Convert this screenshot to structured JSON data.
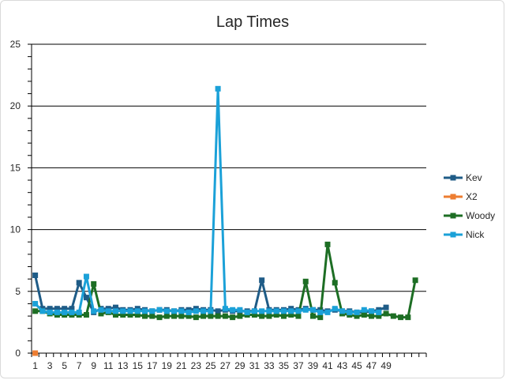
{
  "chart_data": {
    "type": "line",
    "title": "Lap Times",
    "xlabel": "",
    "ylabel": "",
    "ylim": [
      0,
      25
    ],
    "ytick_values": [
      0,
      5,
      10,
      15,
      20,
      25
    ],
    "xtick_labels": [
      "1",
      "3",
      "5",
      "7",
      "9",
      "11",
      "13",
      "15",
      "17",
      "19",
      "21",
      "23",
      "25",
      "27",
      "29",
      "31",
      "33",
      "35",
      "37",
      "39",
      "41",
      "43",
      "45",
      "47",
      "49"
    ],
    "x_count": 54,
    "grid": "horizontal",
    "legend_position": "right",
    "series": [
      {
        "name": "Kev",
        "color": "#1f5c87",
        "values": [
          6.3,
          3.6,
          3.6,
          3.6,
          3.6,
          3.6,
          5.7,
          4.5,
          3.3,
          3.6,
          3.6,
          3.7,
          3.5,
          3.5,
          3.6,
          3.5,
          3.4,
          3.5,
          3.5,
          3.4,
          3.5,
          3.5,
          3.6,
          3.5,
          3.5,
          3.4,
          3.5,
          3.4,
          3.4,
          3.4,
          3.4,
          5.9,
          3.5,
          3.5,
          3.5,
          3.6,
          3.5,
          3.6,
          3.5,
          3.5,
          3.4,
          3.5,
          3.4,
          3.4,
          3.3,
          3.3,
          3.4,
          3.5,
          3.7
        ]
      },
      {
        "name": "X2",
        "color": "#ed7d31",
        "values": [
          0
        ]
      },
      {
        "name": "Woody",
        "color": "#1d6e24",
        "values": [
          3.4,
          3.4,
          3.2,
          3.1,
          3.1,
          3.1,
          3.1,
          3.1,
          5.6,
          3.2,
          3.3,
          3.1,
          3.1,
          3.1,
          3.1,
          3.0,
          3.0,
          2.9,
          3.0,
          3.0,
          3.0,
          3.0,
          2.9,
          3.0,
          3.0,
          3.0,
          3.0,
          2.9,
          3.0,
          3.1,
          3.1,
          3.0,
          3.0,
          3.1,
          3.0,
          3.1,
          3.0,
          5.8,
          3.0,
          2.9,
          8.8,
          5.7,
          3.2,
          3.1,
          3.0,
          3.1,
          3.0,
          3.0,
          3.2,
          3.0,
          2.9,
          2.9,
          5.9
        ]
      },
      {
        "name": "Nick",
        "color": "#1ba1d8",
        "values": [
          4.0,
          3.4,
          3.3,
          3.3,
          3.3,
          3.3,
          3.3,
          6.2,
          3.4,
          3.5,
          3.4,
          3.4,
          3.4,
          3.4,
          3.4,
          3.4,
          3.4,
          3.5,
          3.4,
          3.4,
          3.4,
          3.3,
          3.4,
          3.4,
          3.4,
          21.4,
          3.6,
          3.5,
          3.5,
          3.3,
          3.4,
          3.4,
          3.4,
          3.4,
          3.4,
          3.4,
          3.4,
          3.5,
          3.5,
          3.3,
          3.3,
          3.6,
          3.4,
          3.3,
          3.3,
          3.5,
          3.4,
          3.3
        ]
      }
    ]
  }
}
